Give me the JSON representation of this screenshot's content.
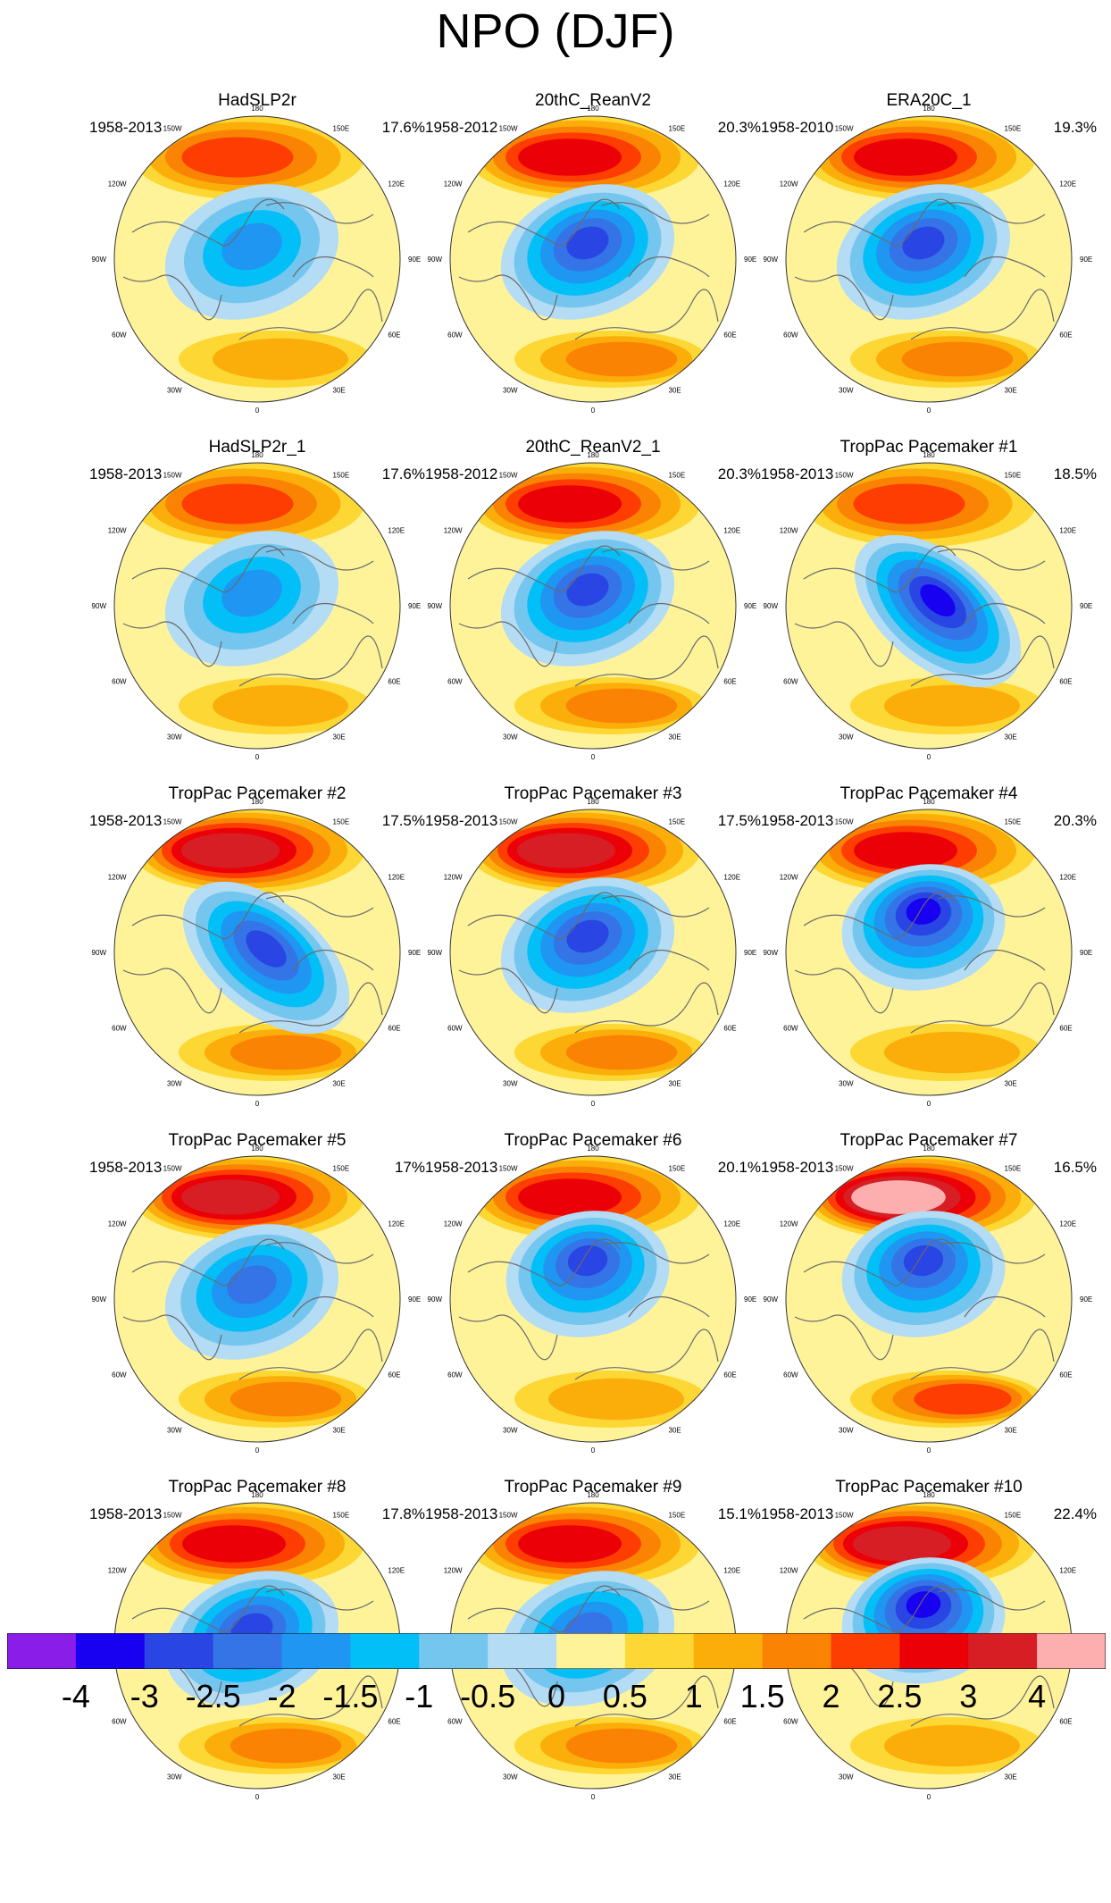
{
  "title": "NPO (DJF)",
  "chart_data": {
    "type": "contour-map-grid",
    "projection": "north-polar-stereographic",
    "longitude_labels": [
      "180",
      "150W",
      "120W",
      "90W",
      "60W",
      "30W",
      "0",
      "30E",
      "60E",
      "90E",
      "120E",
      "150E"
    ],
    "panels": [
      {
        "title": "HadSLP2r",
        "period": "1958-2013",
        "variance": "17.6%",
        "pacific_high": 2.0,
        "arctic_low": -2.0,
        "atlantic_high": 1.0,
        "low_shape": "broad"
      },
      {
        "title": "20thC_ReanV2",
        "period": "1958-2012",
        "variance": "20.3%",
        "pacific_high": 2.5,
        "arctic_low": -3.0,
        "atlantic_high": 1.5,
        "low_shape": "broad"
      },
      {
        "title": "ERA20C_1",
        "period": "1958-2010",
        "variance": "19.3%",
        "pacific_high": 2.5,
        "arctic_low": -3.0,
        "atlantic_high": 1.5,
        "low_shape": "broad"
      },
      {
        "title": "HadSLP2r_1",
        "period": "1958-2013",
        "variance": "17.6%",
        "pacific_high": 2.0,
        "arctic_low": -2.0,
        "atlantic_high": 1.0,
        "low_shape": "broad"
      },
      {
        "title": "20thC_ReanV2_1",
        "period": "1958-2012",
        "variance": "20.3%",
        "pacific_high": 2.5,
        "arctic_low": -3.0,
        "atlantic_high": 1.5,
        "low_shape": "broad"
      },
      {
        "title": "TropPac Pacemaker #1",
        "period": "1958-2013",
        "variance": "18.5%",
        "pacific_high": 2.0,
        "arctic_low": -3.5,
        "atlantic_high": 1.0,
        "low_shape": "elongated"
      },
      {
        "title": "TropPac Pacemaker #2",
        "period": "1958-2013",
        "variance": "17.5%",
        "pacific_high": 3.0,
        "arctic_low": -3.0,
        "atlantic_high": 1.5,
        "low_shape": "elongated"
      },
      {
        "title": "TropPac Pacemaker #3",
        "period": "1958-2013",
        "variance": "17.5%",
        "pacific_high": 3.0,
        "arctic_low": -3.0,
        "atlantic_high": 1.5,
        "low_shape": "broad"
      },
      {
        "title": "TropPac Pacemaker #4",
        "period": "1958-2013",
        "variance": "20.3%",
        "pacific_high": 2.5,
        "arctic_low": -3.5,
        "atlantic_high": 1.0,
        "low_shape": "compact"
      },
      {
        "title": "TropPac Pacemaker #5",
        "period": "1958-2013",
        "variance": "17%",
        "pacific_high": 3.0,
        "arctic_low": -2.5,
        "atlantic_high": 1.5,
        "low_shape": "broad"
      },
      {
        "title": "TropPac Pacemaker #6",
        "period": "1958-2013",
        "variance": "20.1%",
        "pacific_high": 2.5,
        "arctic_low": -3.0,
        "atlantic_high": 1.0,
        "low_shape": "compact"
      },
      {
        "title": "TropPac Pacemaker #7",
        "period": "1958-2013",
        "variance": "16.5%",
        "pacific_high": 3.5,
        "arctic_low": -3.0,
        "atlantic_high": 2.0,
        "low_shape": "compact"
      },
      {
        "title": "TropPac Pacemaker #8",
        "period": "1958-2013",
        "variance": "17.8%",
        "pacific_high": 2.5,
        "arctic_low": -3.0,
        "atlantic_high": 1.5,
        "low_shape": "broad"
      },
      {
        "title": "TropPac Pacemaker #9",
        "period": "1958-2013",
        "variance": "15.1%",
        "pacific_high": 2.5,
        "arctic_low": -2.5,
        "atlantic_high": 1.5,
        "low_shape": "broad"
      },
      {
        "title": "TropPac Pacemaker #10",
        "period": "1958-2013",
        "variance": "22.4%",
        "pacific_high": 3.0,
        "arctic_low": -3.5,
        "atlantic_high": 1.0,
        "low_shape": "compact"
      }
    ],
    "colorbar": {
      "labels": [
        "-4",
        "-3",
        "-2.5",
        "-2",
        "-1.5",
        "-1",
        "-0.5",
        "0",
        "0.5",
        "1",
        "1.5",
        "2",
        "2.5",
        "3",
        "4"
      ],
      "levels": [
        -4,
        -3.5,
        -3,
        -2.5,
        -2,
        -1.5,
        -1,
        -0.5,
        0,
        0.5,
        1,
        1.5,
        2,
        2.5,
        3,
        3.5,
        4
      ],
      "colors": [
        "#8a1de8",
        "#1800f0",
        "#2945e3",
        "#3574e6",
        "#1f96f2",
        "#03bff7",
        "#74c6ef",
        "#b4dcf5",
        "#fff39a",
        "#fdd733",
        "#fbad0a",
        "#fb8303",
        "#fe3d02",
        "#ec0007",
        "#d61e24",
        "#fdafaf"
      ]
    }
  }
}
